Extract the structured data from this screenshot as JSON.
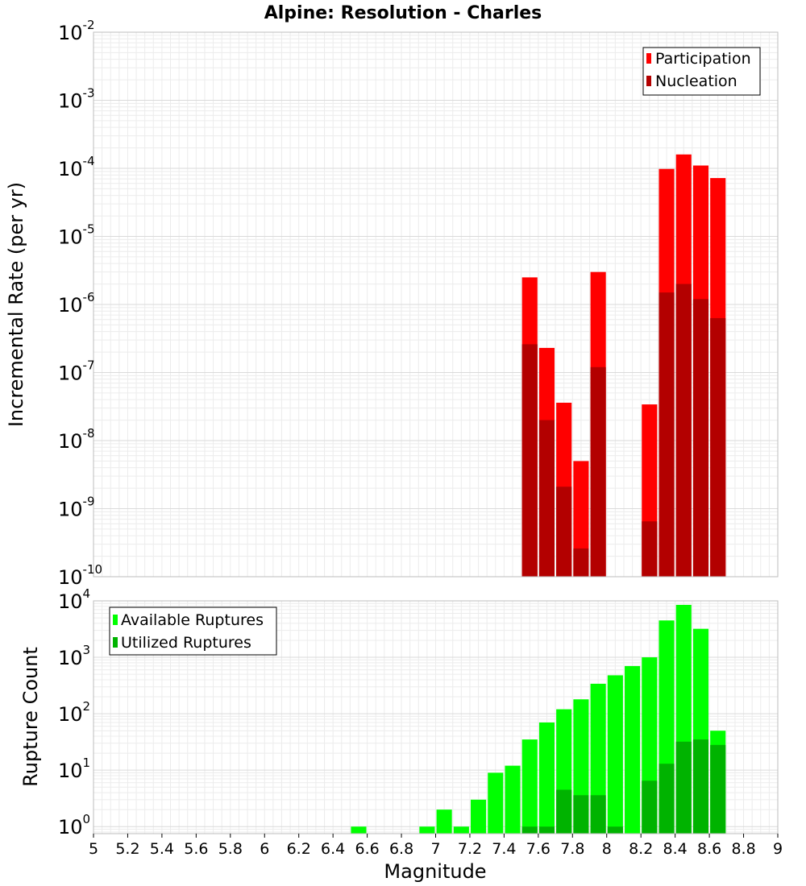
{
  "chart_data": [
    {
      "type": "bar",
      "title": "Alpine: Resolution - Charles",
      "ylabel": "Incremental Rate (per yr)",
      "yscale": "log",
      "ylim": [
        1e-10,
        0.01
      ],
      "grid": true,
      "legend_position": "top-right",
      "bar_width": 0.09,
      "legend": [
        "Participation",
        "Nucleation"
      ],
      "series": [
        {
          "name": "Participation",
          "color": "#ff0000",
          "points": [
            {
              "x": 7.55,
              "y": 2.5e-06
            },
            {
              "x": 7.65,
              "y": 2.3e-07
            },
            {
              "x": 7.75,
              "y": 3.6e-08
            },
            {
              "x": 7.85,
              "y": 5e-09
            },
            {
              "x": 7.95,
              "y": 3e-06
            },
            {
              "x": 8.25,
              "y": 3.4e-08
            },
            {
              "x": 8.35,
              "y": 9.8e-05
            },
            {
              "x": 8.45,
              "y": 0.00016
            },
            {
              "x": 8.55,
              "y": 0.00011
            },
            {
              "x": 8.65,
              "y": 7.2e-05
            }
          ]
        },
        {
          "name": "Nucleation",
          "color": "#b30000",
          "points": [
            {
              "x": 7.55,
              "y": 2.6e-07
            },
            {
              "x": 7.65,
              "y": 2e-08
            },
            {
              "x": 7.75,
              "y": 2.1e-09
            },
            {
              "x": 7.85,
              "y": 2.6e-10
            },
            {
              "x": 7.95,
              "y": 1.2e-07
            },
            {
              "x": 8.25,
              "y": 6.5e-10
            },
            {
              "x": 8.35,
              "y": 1.5e-06
            },
            {
              "x": 8.45,
              "y": 2e-06
            },
            {
              "x": 8.55,
              "y": 1.2e-06
            },
            {
              "x": 8.65,
              "y": 6.3e-07
            }
          ]
        }
      ]
    },
    {
      "type": "bar",
      "xlabel": "Magnitude",
      "ylabel": "Rupture Count",
      "yscale": "log",
      "ylim": [
        0.75,
        10000
      ],
      "xlim": [
        5,
        9
      ],
      "xticks": [
        "5",
        "5.2",
        "5.4",
        "5.6",
        "5.8",
        "6",
        "6.2",
        "6.4",
        "6.6",
        "6.8",
        "7",
        "7.2",
        "7.4",
        "7.6",
        "7.8",
        "8",
        "8.2",
        "8.4",
        "8.6",
        "8.8",
        "9"
      ],
      "grid": true,
      "legend_position": "top-left",
      "bar_width": 0.09,
      "legend": [
        "Available Ruptures",
        "Utilized Ruptures"
      ],
      "series": [
        {
          "name": "Available Ruptures",
          "color": "#00ff00",
          "points": [
            {
              "x": 6.55,
              "y": 1
            },
            {
              "x": 6.95,
              "y": 1
            },
            {
              "x": 7.05,
              "y": 2
            },
            {
              "x": 7.15,
              "y": 1
            },
            {
              "x": 7.25,
              "y": 3
            },
            {
              "x": 7.35,
              "y": 9
            },
            {
              "x": 7.45,
              "y": 12
            },
            {
              "x": 7.55,
              "y": 35
            },
            {
              "x": 7.65,
              "y": 70
            },
            {
              "x": 7.75,
              "y": 120
            },
            {
              "x": 7.85,
              "y": 180
            },
            {
              "x": 7.95,
              "y": 340
            },
            {
              "x": 8.05,
              "y": 480
            },
            {
              "x": 8.15,
              "y": 700
            },
            {
              "x": 8.25,
              "y": 1000
            },
            {
              "x": 8.35,
              "y": 4500
            },
            {
              "x": 8.45,
              "y": 8500
            },
            {
              "x": 8.55,
              "y": 3200
            },
            {
              "x": 8.65,
              "y": 50
            }
          ]
        },
        {
          "name": "Utilized Ruptures",
          "color": "#00b300",
          "points": [
            {
              "x": 7.55,
              "y": 1
            },
            {
              "x": 7.65,
              "y": 1
            },
            {
              "x": 7.75,
              "y": 4.5
            },
            {
              "x": 7.85,
              "y": 3.6
            },
            {
              "x": 7.95,
              "y": 3.6
            },
            {
              "x": 8.05,
              "y": 1
            },
            {
              "x": 8.25,
              "y": 6.5
            },
            {
              "x": 8.35,
              "y": 13
            },
            {
              "x": 8.45,
              "y": 32
            },
            {
              "x": 8.55,
              "y": 35
            },
            {
              "x": 8.65,
              "y": 28
            }
          ]
        }
      ]
    }
  ]
}
